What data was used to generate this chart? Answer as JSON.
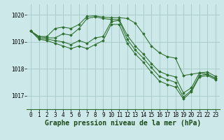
{
  "background_color": "#cce8e8",
  "grid_color": "#aacccc",
  "line_color": "#2d6e2d",
  "marker_color": "#2d6e2d",
  "xlabel": "Graphe pression niveau de la mer (hPa)",
  "xlabel_fontsize": 7,
  "tick_fontsize": 5.5,
  "xlim": [
    -0.5,
    23.5
  ],
  "ylim": [
    1016.5,
    1020.4
  ],
  "yticks": [
    1017,
    1018,
    1019,
    1020
  ],
  "xticks": [
    0,
    1,
    2,
    3,
    4,
    5,
    6,
    7,
    8,
    9,
    10,
    11,
    12,
    13,
    14,
    15,
    16,
    17,
    18,
    19,
    20,
    21,
    22,
    23
  ],
  "series": [
    [
      1019.4,
      1019.2,
      1019.2,
      1019.5,
      1019.55,
      1019.5,
      1019.65,
      1019.95,
      1019.97,
      1019.92,
      1019.9,
      1019.9,
      1019.87,
      1019.7,
      1019.3,
      1018.85,
      1018.6,
      1018.45,
      1018.4,
      1017.75,
      1017.8,
      1017.85,
      1017.8,
      1017.65
    ],
    [
      1019.4,
      1019.2,
      1019.15,
      1019.15,
      1019.3,
      1019.25,
      1019.5,
      1019.87,
      1019.93,
      1019.87,
      1019.83,
      1019.83,
      1019.25,
      1018.85,
      1018.55,
      1018.2,
      1017.9,
      1017.78,
      1017.7,
      1017.1,
      1017.3,
      1017.85,
      1017.88,
      1017.72
    ],
    [
      1019.4,
      1019.15,
      1019.1,
      1019.05,
      1019.0,
      1018.9,
      1019.05,
      1018.95,
      1019.15,
      1019.2,
      1019.75,
      1019.8,
      1019.1,
      1018.7,
      1018.4,
      1018.05,
      1017.72,
      1017.6,
      1017.5,
      1016.95,
      1017.2,
      1017.75,
      1017.8,
      1017.65
    ],
    [
      1019.4,
      1019.1,
      1019.05,
      1018.95,
      1018.85,
      1018.75,
      1018.85,
      1018.75,
      1018.9,
      1019.05,
      1019.65,
      1019.65,
      1018.95,
      1018.55,
      1018.25,
      1017.88,
      1017.55,
      1017.42,
      1017.32,
      1016.88,
      1017.15,
      1017.7,
      1017.75,
      1017.6
    ]
  ]
}
